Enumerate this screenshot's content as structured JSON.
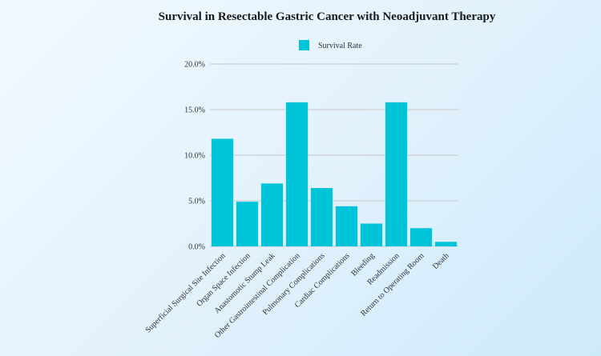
{
  "chart_data": {
    "type": "bar",
    "title": "Survival in Resectable Gastric Cancer with Neoadjuvant Therapy",
    "xlabel": "",
    "ylabel": "",
    "categories": [
      "Superficial Surgical Site Infection",
      "Organ Space Infection",
      "Anastomotic Stump Leak",
      "Other Gastrointestinal Complication",
      "Pulmonary Complications",
      "Cardiac Complications",
      "Bleeding",
      "Readmission",
      "Return to Operating Room",
      "Death"
    ],
    "series": [
      {
        "name": "Survival Rate",
        "values": [
          11.8,
          4.9,
          6.9,
          15.8,
          6.4,
          4.4,
          2.5,
          15.8,
          2.0,
          0.5
        ]
      }
    ],
    "ylim": [
      0,
      20
    ],
    "yticks": [
      "0.0%",
      "5.0%",
      "10.0%",
      "15.0%",
      "20.0%"
    ],
    "ytick_values": [
      0,
      5,
      10,
      15,
      20
    ],
    "grid": true,
    "legend_position": "top",
    "colors": {
      "bar": "#00c5d8",
      "grid": "#c8c8c8"
    }
  }
}
